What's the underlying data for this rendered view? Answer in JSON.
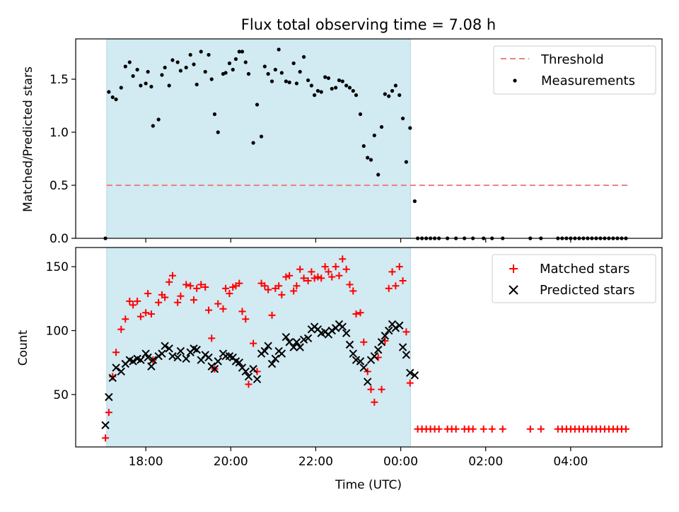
{
  "figure": {
    "title": "Flux total observing time = 7.08 h"
  },
  "chart_data": [
    {
      "type": "scatter",
      "ylabel": "Matched/Predicted stars",
      "xlabel": "",
      "ylim": [
        0,
        1.88
      ],
      "yticks": [
        0,
        0.5,
        1,
        1.5
      ],
      "ytick_labels": [
        "0.0",
        "0.5",
        "1.0",
        "1.5"
      ],
      "shaded_x_range": [
        17.08,
        24.23
      ],
      "shade_color": "#add8e6",
      "threshold": {
        "name": "Threshold",
        "value": 0.5,
        "x_range": [
          17.08,
          29.35
        ],
        "color": "#f08080"
      },
      "series": [
        {
          "name": "Measurements",
          "color": "#000000",
          "marker": "dot",
          "x": [
            17.05,
            17.13,
            17.22,
            17.3,
            17.42,
            17.52,
            17.62,
            17.7,
            17.8,
            17.88,
            18.0,
            18.05,
            18.13,
            18.17,
            18.3,
            18.38,
            18.45,
            18.55,
            18.63,
            18.75,
            18.82,
            18.95,
            19.05,
            19.13,
            19.2,
            19.3,
            19.4,
            19.48,
            19.55,
            19.62,
            19.7,
            19.82,
            19.88,
            19.97,
            20.05,
            20.12,
            20.2,
            20.27,
            20.35,
            20.42,
            20.53,
            20.62,
            20.72,
            20.8,
            20.88,
            20.97,
            21.05,
            21.13,
            21.2,
            21.3,
            21.38,
            21.48,
            21.55,
            21.63,
            21.72,
            21.82,
            21.9,
            21.97,
            22.05,
            22.13,
            22.22,
            22.3,
            22.38,
            22.47,
            22.55,
            22.63,
            22.72,
            22.8,
            22.88,
            22.95,
            23.05,
            23.13,
            23.22,
            23.3,
            23.38,
            23.47,
            23.55,
            23.63,
            23.72,
            23.8,
            23.88,
            23.97,
            24.05,
            24.13,
            24.22,
            24.33,
            24.4,
            24.5,
            24.6,
            24.7,
            24.8,
            24.9,
            25.1,
            25.3,
            25.5,
            25.7,
            25.95,
            26.15,
            26.4,
            27.05,
            27.3,
            27.7,
            27.8,
            27.9,
            28.0,
            28.1,
            28.2,
            28.3,
            28.4,
            28.5,
            28.6,
            28.7,
            28.8,
            28.9,
            29.0,
            29.1,
            29.2,
            29.3
          ],
          "values": [
            0.0,
            1.38,
            1.33,
            1.31,
            1.42,
            1.62,
            1.66,
            1.53,
            1.59,
            1.44,
            1.46,
            1.57,
            1.43,
            1.06,
            1.12,
            1.54,
            1.61,
            1.44,
            1.68,
            1.66,
            1.58,
            1.61,
            1.73,
            1.64,
            1.45,
            1.76,
            1.57,
            1.73,
            1.5,
            1.17,
            1.0,
            1.55,
            1.56,
            1.65,
            1.59,
            1.69,
            1.76,
            1.76,
            1.66,
            1.55,
            0.9,
            1.26,
            0.96,
            1.62,
            1.55,
            1.48,
            1.59,
            1.78,
            1.56,
            1.48,
            1.47,
            1.65,
            1.46,
            1.57,
            1.71,
            1.49,
            1.44,
            1.35,
            1.39,
            1.38,
            1.52,
            1.51,
            1.41,
            1.42,
            1.49,
            1.48,
            1.44,
            1.42,
            1.39,
            1.35,
            1.17,
            0.87,
            0.76,
            0.74,
            0.97,
            0.6,
            1.05,
            1.36,
            1.34,
            1.39,
            1.44,
            1.35,
            1.13,
            0.72,
            1.04,
            0.35,
            0,
            0,
            0,
            0,
            0,
            0,
            0,
            0,
            0,
            0,
            0,
            0,
            0,
            0,
            0,
            0,
            0,
            0,
            0,
            0,
            0,
            0,
            0,
            0,
            0,
            0,
            0,
            0,
            0,
            0,
            0,
            0
          ]
        }
      ]
    },
    {
      "type": "scatter",
      "ylabel": "Count",
      "xlabel": "Time (UTC)",
      "ylim": [
        9,
        165
      ],
      "yticks": [
        50,
        100,
        150
      ],
      "ytick_labels": [
        "50",
        "100",
        "150"
      ],
      "xlim": [
        16.35,
        30.15
      ],
      "xticks": [
        18,
        20,
        22,
        24,
        26,
        28
      ],
      "xtick_labels": [
        "18:00",
        "20:00",
        "22:00",
        "00:00",
        "02:00",
        "04:00"
      ],
      "shaded_x_range": [
        17.08,
        24.23
      ],
      "shade_color": "#add8e6",
      "series": [
        {
          "name": "Matched stars",
          "color": "#ff0000",
          "marker": "plus",
          "x": [
            17.05,
            17.13,
            17.22,
            17.3,
            17.42,
            17.52,
            17.62,
            17.7,
            17.8,
            17.88,
            18.0,
            18.05,
            18.13,
            18.17,
            18.3,
            18.38,
            18.45,
            18.55,
            18.63,
            18.75,
            18.82,
            18.95,
            19.05,
            19.13,
            19.2,
            19.3,
            19.4,
            19.48,
            19.55,
            19.62,
            19.7,
            19.82,
            19.88,
            19.97,
            20.05,
            20.12,
            20.2,
            20.27,
            20.35,
            20.42,
            20.53,
            20.62,
            20.72,
            20.8,
            20.88,
            20.97,
            21.05,
            21.13,
            21.2,
            21.3,
            21.38,
            21.48,
            21.55,
            21.63,
            21.72,
            21.82,
            21.9,
            21.97,
            22.05,
            22.13,
            22.22,
            22.3,
            22.38,
            22.47,
            22.55,
            22.63,
            22.72,
            22.8,
            22.88,
            22.95,
            23.05,
            23.13,
            23.22,
            23.3,
            23.38,
            23.47,
            23.55,
            23.63,
            23.72,
            23.8,
            23.88,
            23.97,
            24.05,
            24.13,
            24.22,
            24.4,
            24.5,
            24.6,
            24.7,
            24.8,
            24.9,
            25.1,
            25.2,
            25.3,
            25.5,
            25.6,
            25.7,
            25.95,
            26.15,
            26.4,
            27.05,
            27.3,
            27.7,
            27.8,
            27.9,
            28.0,
            28.1,
            28.2,
            28.3,
            28.4,
            28.5,
            28.6,
            28.7,
            28.8,
            28.9,
            29.0,
            29.1,
            29.2,
            29.3
          ],
          "values": [
            16,
            36,
            64,
            83,
            101,
            109,
            123,
            120,
            123,
            111,
            114,
            129,
            113,
            77,
            122,
            128,
            126,
            138,
            143,
            122,
            127,
            136,
            135,
            124,
            133,
            136,
            134,
            116,
            94,
            70,
            121,
            117,
            133,
            129,
            134,
            135,
            137,
            115,
            109,
            58,
            90,
            68,
            137,
            135,
            132,
            112,
            133,
            135,
            128,
            142,
            143,
            131,
            135,
            148,
            141,
            139,
            146,
            141,
            142,
            141,
            150,
            146,
            142,
            150,
            143,
            156,
            148,
            136,
            131,
            113,
            114,
            91,
            68,
            54,
            44,
            79,
            54,
            92,
            133,
            146,
            135,
            150,
            139,
            99,
            59,
            23,
            23,
            23,
            23,
            23,
            23,
            23,
            23,
            23,
            23,
            23,
            23,
            23,
            23,
            23,
            23,
            23,
            23,
            23,
            23,
            23,
            23,
            23,
            23,
            23,
            23,
            23,
            23,
            23,
            23,
            23,
            23,
            23,
            23
          ]
        },
        {
          "name": "Predicted stars",
          "color": "#000000",
          "marker": "x",
          "x": [
            17.05,
            17.13,
            17.22,
            17.3,
            17.42,
            17.52,
            17.62,
            17.7,
            17.8,
            17.88,
            18.0,
            18.05,
            18.13,
            18.17,
            18.3,
            18.38,
            18.45,
            18.55,
            18.63,
            18.75,
            18.82,
            18.95,
            19.05,
            19.13,
            19.2,
            19.3,
            19.4,
            19.48,
            19.55,
            19.62,
            19.7,
            19.82,
            19.88,
            19.97,
            20.05,
            20.12,
            20.2,
            20.27,
            20.35,
            20.42,
            20.53,
            20.62,
            20.72,
            20.8,
            20.88,
            20.97,
            21.05,
            21.13,
            21.2,
            21.3,
            21.38,
            21.48,
            21.55,
            21.63,
            21.72,
            21.82,
            21.9,
            21.97,
            22.05,
            22.13,
            22.22,
            22.3,
            22.38,
            22.47,
            22.55,
            22.63,
            22.72,
            22.8,
            22.88,
            22.95,
            23.05,
            23.13,
            23.22,
            23.3,
            23.38,
            23.47,
            23.55,
            23.63,
            23.72,
            23.8,
            23.88,
            23.97,
            24.05,
            24.13,
            24.22,
            24.33
          ],
          "values": [
            26,
            48,
            63,
            71,
            68,
            74,
            77,
            76,
            78,
            77,
            82,
            79,
            72,
            77,
            80,
            82,
            88,
            86,
            80,
            79,
            84,
            78,
            83,
            86,
            85,
            77,
            81,
            79,
            72,
            70,
            76,
            82,
            80,
            80,
            79,
            76,
            75,
            71,
            68,
            64,
            70,
            62,
            82,
            84,
            88,
            74,
            78,
            84,
            82,
            95,
            91,
            87,
            91,
            87,
            93,
            94,
            101,
            103,
            101,
            98,
            99,
            97,
            100,
            102,
            105,
            103,
            98,
            89,
            82,
            77,
            76,
            71,
            60,
            77,
            80,
            85,
            91,
            96,
            100,
            105,
            102,
            104,
            87,
            81,
            67,
            65
          ]
        }
      ]
    }
  ]
}
